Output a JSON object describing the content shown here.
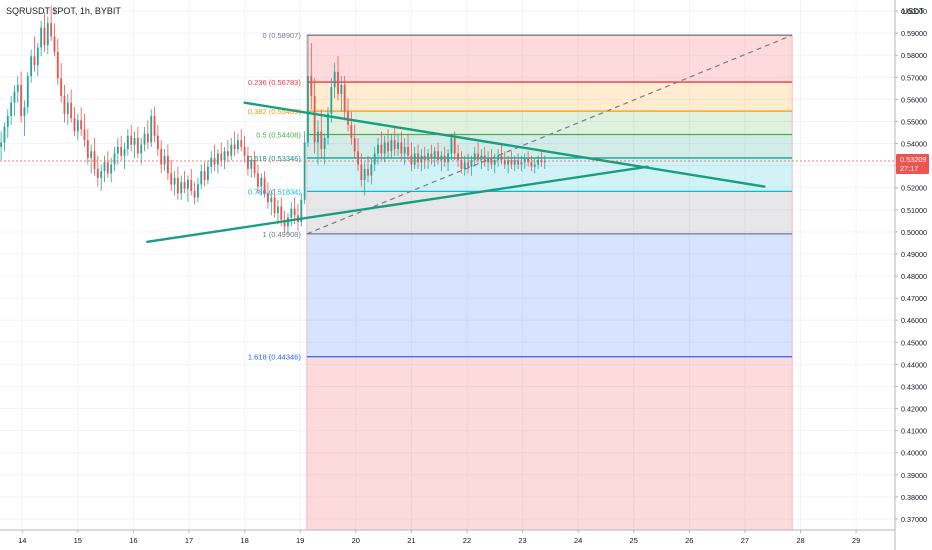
{
  "header": {
    "symbol_line": "SQRUSDT $POT, 1h, BYBIT",
    "currency": "USDT"
  },
  "price_tag": {
    "price": "0.53209",
    "countdown": "27:17"
  },
  "colors": {
    "accent_green": "#1a9e80",
    "candle_up": "#26a69a",
    "candle_down": "#ef5350",
    "price_tag_bg": "#ef5350"
  },
  "chart_data": {
    "type": "candlestick",
    "title": "SQRUSDT $POT, 1h, BYBIT",
    "y_axis": {
      "label": "USDT",
      "range": [
        0.365,
        0.605
      ],
      "ticks": [
        "0.60000",
        "0.59000",
        "0.58000",
        "0.57000",
        "0.56000",
        "0.55000",
        "0.54000",
        "0.53000",
        "0.52000",
        "0.51000",
        "0.50000",
        "0.49000",
        "0.48000",
        "0.47000",
        "0.46000",
        "0.45000",
        "0.44000",
        "0.43000",
        "0.42000",
        "0.41000",
        "0.40000",
        "0.39000",
        "0.38000",
        "0.37000"
      ]
    },
    "x_axis": {
      "range": [
        13.6,
        29.7
      ],
      "ticks": [
        {
          "day": 14,
          "label": "14"
        },
        {
          "day": 15,
          "label": "15"
        },
        {
          "day": 16,
          "label": "16"
        },
        {
          "day": 17,
          "label": "17"
        },
        {
          "day": 18,
          "label": "18"
        },
        {
          "day": 19,
          "label": "19"
        },
        {
          "day": 20,
          "label": "20"
        },
        {
          "day": 21,
          "label": "21"
        },
        {
          "day": 22,
          "label": "22"
        },
        {
          "day": 23,
          "label": "23"
        },
        {
          "day": 24,
          "label": "24"
        },
        {
          "day": 25,
          "label": "25"
        },
        {
          "day": 26,
          "label": "26"
        },
        {
          "day": 27,
          "label": "27"
        },
        {
          "day": 28,
          "label": "28"
        },
        {
          "day": 29,
          "label": "29"
        }
      ]
    },
    "last_price": 0.53209,
    "fib_retracement": {
      "x_start": 19.12,
      "x_end": 27.85,
      "levels": [
        {
          "level": "0",
          "price": 0.58907,
          "label": "0 (0.58907)",
          "color": "#787b86",
          "fill": null
        },
        {
          "level": "0.236",
          "price": 0.56783,
          "label": "0.236 (0.56783)",
          "color": "#f23645",
          "fill": "rgba(242,54,69,0.18)"
        },
        {
          "level": "0.382",
          "price": 0.55469,
          "label": "0.382 (0.55469)",
          "color": "#ff9800",
          "fill": "rgba(255,152,0,0.18)"
        },
        {
          "level": "0.5",
          "price": 0.54408,
          "label": "0.5 (0.54408)",
          "color": "#4caf50",
          "fill": "rgba(76,175,80,0.18)"
        },
        {
          "level": "0.618",
          "price": 0.53346,
          "label": "0.618 (0.53346)",
          "color": "#089981",
          "fill": "rgba(8,153,129,0.18)"
        },
        {
          "level": "0.786",
          "price": 0.51834,
          "label": "0.786 (0.51834)",
          "color": "#00bcd4",
          "fill": "rgba(0,188,212,0.18)"
        },
        {
          "level": "1",
          "price": 0.49908,
          "label": "1 (0.49908)",
          "color": "#787b86",
          "fill": "rgba(120,123,134,0.18)"
        },
        {
          "level": "1.618",
          "price": 0.44346,
          "label": "1.618 (0.44346)",
          "color": "#2962ff",
          "fill": "rgba(41,98,255,0.18)"
        }
      ],
      "bottom_fill_to": 0.365,
      "bottom_fill_color": "rgba(242,54,69,0.18)",
      "trend_line": {
        "x1": 19.12,
        "y1": 0.49908,
        "x2": 27.85,
        "y2": 0.58907
      }
    },
    "trendlines": [
      {
        "name": "upper",
        "x1": 18.0,
        "y1": 0.5585,
        "x2": 27.35,
        "y2": 0.5205,
        "color": "#1a9e80"
      },
      {
        "name": "lower",
        "x1": 16.25,
        "y1": 0.4955,
        "x2": 25.25,
        "y2": 0.5295,
        "color": "#1a9e80"
      }
    ],
    "candles": [
      [
        13.62,
        0.5385,
        0.5455,
        0.5325,
        0.5405
      ],
      [
        13.68,
        0.5405,
        0.5495,
        0.5365,
        0.5475
      ],
      [
        13.74,
        0.5475,
        0.5555,
        0.5425,
        0.5525
      ],
      [
        13.8,
        0.5525,
        0.5615,
        0.5485,
        0.5585
      ],
      [
        13.86,
        0.5585,
        0.5665,
        0.5525,
        0.5635
      ],
      [
        13.92,
        0.5635,
        0.5705,
        0.5585,
        0.5665
      ],
      [
        13.98,
        0.5665,
        0.5725,
        0.5495,
        0.5525
      ],
      [
        14.04,
        0.5525,
        0.5595,
        0.5435,
        0.5565
      ],
      [
        14.1,
        0.5565,
        0.5725,
        0.5535,
        0.5705
      ],
      [
        14.16,
        0.5705,
        0.5825,
        0.5675,
        0.5795
      ],
      [
        14.22,
        0.5795,
        0.5885,
        0.5725,
        0.5755
      ],
      [
        14.28,
        0.5755,
        0.5855,
        0.5705,
        0.5835
      ],
      [
        14.34,
        0.5835,
        0.5955,
        0.5795,
        0.5925
      ],
      [
        14.4,
        0.5925,
        0.5995,
        0.5815,
        0.5845
      ],
      [
        14.46,
        0.5845,
        0.5975,
        0.5805,
        0.5945
      ],
      [
        14.52,
        0.5945,
        0.6025,
        0.5865,
        0.5885
      ],
      [
        14.58,
        0.5885,
        0.5945,
        0.5795,
        0.5815
      ],
      [
        14.64,
        0.5815,
        0.5875,
        0.5665,
        0.5695
      ],
      [
        14.7,
        0.5695,
        0.5765,
        0.5585,
        0.5615
      ],
      [
        14.76,
        0.5615,
        0.5665,
        0.5495,
        0.5535
      ],
      [
        14.82,
        0.5535,
        0.5625,
        0.5485,
        0.5585
      ],
      [
        14.88,
        0.5585,
        0.5645,
        0.5495,
        0.5515
      ],
      [
        14.94,
        0.5515,
        0.5565,
        0.5435,
        0.5455
      ],
      [
        15.0,
        0.5455,
        0.5535,
        0.5415,
        0.5505
      ],
      [
        15.06,
        0.5505,
        0.5565,
        0.5435,
        0.5465
      ],
      [
        15.12,
        0.5465,
        0.5535,
        0.5385,
        0.5415
      ],
      [
        15.18,
        0.5415,
        0.5465,
        0.5305,
        0.5335
      ],
      [
        15.24,
        0.5335,
        0.5395,
        0.5265,
        0.5365
      ],
      [
        15.3,
        0.5365,
        0.5425,
        0.5255,
        0.5285
      ],
      [
        15.36,
        0.5285,
        0.5345,
        0.5205,
        0.5245
      ],
      [
        15.42,
        0.5245,
        0.5305,
        0.5185,
        0.5275
      ],
      [
        15.48,
        0.5275,
        0.5345,
        0.5225,
        0.5315
      ],
      [
        15.54,
        0.5315,
        0.5365,
        0.5245,
        0.5265
      ],
      [
        15.6,
        0.5265,
        0.5335,
        0.5225,
        0.5305
      ],
      [
        15.66,
        0.5305,
        0.5385,
        0.5275,
        0.5355
      ],
      [
        15.72,
        0.5355,
        0.5425,
        0.5305,
        0.5385
      ],
      [
        15.78,
        0.5385,
        0.5435,
        0.5325,
        0.5345
      ],
      [
        15.84,
        0.5345,
        0.5405,
        0.5285,
        0.5375
      ],
      [
        15.9,
        0.5375,
        0.5465,
        0.5345,
        0.5435
      ],
      [
        15.96,
        0.5435,
        0.5485,
        0.5365,
        0.5395
      ],
      [
        16.02,
        0.5395,
        0.5455,
        0.5335,
        0.5425
      ],
      [
        16.08,
        0.5425,
        0.5475,
        0.5335,
        0.5355
      ],
      [
        16.14,
        0.5355,
        0.5425,
        0.5305,
        0.5395
      ],
      [
        16.2,
        0.5395,
        0.5475,
        0.5365,
        0.5445
      ],
      [
        16.26,
        0.5445,
        0.5505,
        0.5375,
        0.5405
      ],
      [
        16.32,
        0.5405,
        0.5555,
        0.5385,
        0.5525
      ],
      [
        16.38,
        0.5525,
        0.5565,
        0.5405,
        0.5435
      ],
      [
        16.44,
        0.5435,
        0.5485,
        0.5345,
        0.5375
      ],
      [
        16.5,
        0.5375,
        0.5415,
        0.5265,
        0.5305
      ],
      [
        16.56,
        0.5305,
        0.5375,
        0.5275,
        0.5345
      ],
      [
        16.62,
        0.5345,
        0.5395,
        0.5235,
        0.5265
      ],
      [
        16.68,
        0.5265,
        0.5325,
        0.5185,
        0.5215
      ],
      [
        16.74,
        0.5215,
        0.5275,
        0.5165,
        0.5245
      ],
      [
        16.8,
        0.5245,
        0.5295,
        0.5145,
        0.5175
      ],
      [
        16.86,
        0.5175,
        0.5255,
        0.5145,
        0.5225
      ],
      [
        16.92,
        0.5225,
        0.5275,
        0.5175,
        0.5195
      ],
      [
        16.98,
        0.5195,
        0.5255,
        0.5135,
        0.5235
      ],
      [
        17.04,
        0.5235,
        0.5285,
        0.5165,
        0.5185
      ],
      [
        17.1,
        0.5185,
        0.5225,
        0.5125,
        0.5155
      ],
      [
        17.16,
        0.5155,
        0.5245,
        0.5135,
        0.5215
      ],
      [
        17.22,
        0.5215,
        0.5305,
        0.5195,
        0.5275
      ],
      [
        17.28,
        0.5275,
        0.5315,
        0.5205,
        0.5235
      ],
      [
        17.34,
        0.5235,
        0.5325,
        0.5215,
        0.5295
      ],
      [
        17.4,
        0.5295,
        0.5365,
        0.5265,
        0.5335
      ],
      [
        17.46,
        0.5335,
        0.5395,
        0.5275,
        0.5305
      ],
      [
        17.52,
        0.5305,
        0.5375,
        0.5265,
        0.5355
      ],
      [
        17.58,
        0.5355,
        0.5405,
        0.5295,
        0.5325
      ],
      [
        17.64,
        0.5325,
        0.5385,
        0.5285,
        0.5365
      ],
      [
        17.7,
        0.5365,
        0.5415,
        0.5315,
        0.5345
      ],
      [
        17.76,
        0.5345,
        0.5425,
        0.5325,
        0.5395
      ],
      [
        17.82,
        0.5395,
        0.5455,
        0.5345,
        0.5375
      ],
      [
        17.88,
        0.5375,
        0.5445,
        0.5355,
        0.5415
      ],
      [
        17.94,
        0.5415,
        0.5465,
        0.5365,
        0.5385
      ],
      [
        18.0,
        0.5385,
        0.5435,
        0.5315,
        0.5345
      ],
      [
        18.06,
        0.5345,
        0.5385,
        0.5255,
        0.5285
      ],
      [
        18.12,
        0.5285,
        0.5345,
        0.5245,
        0.5325
      ],
      [
        18.18,
        0.5325,
        0.5365,
        0.5245,
        0.5265
      ],
      [
        18.24,
        0.5265,
        0.5305,
        0.5175,
        0.5205
      ],
      [
        18.3,
        0.5205,
        0.5265,
        0.5165,
        0.5245
      ],
      [
        18.36,
        0.5245,
        0.5275,
        0.5155,
        0.5175
      ],
      [
        18.42,
        0.5175,
        0.5225,
        0.5105,
        0.5135
      ],
      [
        18.48,
        0.5135,
        0.5185,
        0.5075,
        0.5155
      ],
      [
        18.54,
        0.5155,
        0.5195,
        0.5065,
        0.5085
      ],
      [
        18.6,
        0.5085,
        0.5145,
        0.5035,
        0.5115
      ],
      [
        18.66,
        0.5115,
        0.5155,
        0.5025,
        0.5055
      ],
      [
        18.72,
        0.5055,
        0.5095,
        0.4995,
        0.5025
      ],
      [
        18.78,
        0.5025,
        0.5085,
        0.4991,
        0.5065
      ],
      [
        18.84,
        0.5065,
        0.5135,
        0.5025,
        0.5105
      ],
      [
        18.9,
        0.5105,
        0.5155,
        0.5035,
        0.5075
      ],
      [
        18.96,
        0.5075,
        0.5125,
        0.5005,
        0.5045
      ],
      [
        19.02,
        0.5045,
        0.5175,
        0.5025,
        0.5145
      ],
      [
        19.08,
        0.5145,
        0.5455,
        0.5125,
        0.5405
      ],
      [
        19.14,
        0.5405,
        0.5891,
        0.5385,
        0.5705
      ],
      [
        19.2,
        0.5705,
        0.5855,
        0.5555,
        0.5615
      ],
      [
        19.26,
        0.5615,
        0.5695,
        0.5355,
        0.5405
      ],
      [
        19.32,
        0.5405,
        0.5505,
        0.5305,
        0.5455
      ],
      [
        19.38,
        0.5455,
        0.5555,
        0.5335,
        0.5375
      ],
      [
        19.44,
        0.5375,
        0.5445,
        0.5305,
        0.5425
      ],
      [
        19.5,
        0.5425,
        0.5565,
        0.5395,
        0.5535
      ],
      [
        19.56,
        0.5535,
        0.5695,
        0.5495,
        0.5655
      ],
      [
        19.62,
        0.5655,
        0.5765,
        0.5605,
        0.5725
      ],
      [
        19.68,
        0.5725,
        0.5795,
        0.5595,
        0.5625
      ],
      [
        19.74,
        0.5625,
        0.5705,
        0.5545,
        0.5665
      ],
      [
        19.8,
        0.5665,
        0.5705,
        0.5505,
        0.5545
      ],
      [
        19.86,
        0.5545,
        0.5605,
        0.5455,
        0.5485
      ],
      [
        19.92,
        0.5485,
        0.5545,
        0.5395,
        0.5425
      ],
      [
        19.98,
        0.5425,
        0.5485,
        0.5335,
        0.5365
      ],
      [
        20.04,
        0.5365,
        0.5425,
        0.5275,
        0.5305
      ],
      [
        20.1,
        0.5305,
        0.5355,
        0.5205,
        0.5235
      ],
      [
        20.16,
        0.5235,
        0.5315,
        0.5165,
        0.5285
      ],
      [
        20.22,
        0.5285,
        0.5345,
        0.5225,
        0.5255
      ],
      [
        20.28,
        0.5255,
        0.5335,
        0.5215,
        0.5305
      ],
      [
        20.34,
        0.5305,
        0.5385,
        0.5275,
        0.5355
      ],
      [
        20.4,
        0.5355,
        0.5425,
        0.5305,
        0.5395
      ],
      [
        20.46,
        0.5395,
        0.5455,
        0.5325,
        0.5355
      ],
      [
        20.52,
        0.5355,
        0.5435,
        0.5315,
        0.5405
      ],
      [
        20.58,
        0.5405,
        0.5465,
        0.5335,
        0.5365
      ],
      [
        20.64,
        0.5365,
        0.5445,
        0.5335,
        0.5415
      ],
      [
        20.7,
        0.5415,
        0.5475,
        0.5345,
        0.5375
      ],
      [
        20.76,
        0.5375,
        0.5445,
        0.5345,
        0.5405
      ],
      [
        20.82,
        0.5405,
        0.5455,
        0.5325,
        0.5355
      ],
      [
        20.88,
        0.5355,
        0.5425,
        0.5305,
        0.5385
      ],
      [
        20.94,
        0.5385,
        0.5445,
        0.5325,
        0.5345
      ],
      [
        21.0,
        0.5345,
        0.5405,
        0.5275,
        0.5305
      ],
      [
        21.06,
        0.5305,
        0.5385,
        0.5285,
        0.5355
      ],
      [
        21.12,
        0.5355,
        0.5395,
        0.5285,
        0.5315
      ],
      [
        21.18,
        0.5315,
        0.5375,
        0.5275,
        0.5345
      ],
      [
        21.24,
        0.5345,
        0.5385,
        0.5285,
        0.5325
      ],
      [
        21.3,
        0.5325,
        0.5375,
        0.5285,
        0.5355
      ],
      [
        21.36,
        0.5355,
        0.5395,
        0.5305,
        0.5335
      ],
      [
        21.42,
        0.5335,
        0.5385,
        0.5295,
        0.5365
      ],
      [
        21.48,
        0.5365,
        0.5405,
        0.5305,
        0.5325
      ],
      [
        21.54,
        0.5325,
        0.5365,
        0.5275,
        0.5345
      ],
      [
        21.6,
        0.5345,
        0.5385,
        0.5295,
        0.5315
      ],
      [
        21.66,
        0.5315,
        0.5375,
        0.5275,
        0.5355
      ],
      [
        21.72,
        0.5355,
        0.5445,
        0.5325,
        0.5425
      ],
      [
        21.78,
        0.5425,
        0.5455,
        0.5325,
        0.5355
      ],
      [
        21.84,
        0.5355,
        0.5395,
        0.5295,
        0.5325
      ],
      [
        21.9,
        0.5325,
        0.5365,
        0.5265,
        0.5285
      ],
      [
        21.96,
        0.5285,
        0.5345,
        0.5255,
        0.5315
      ],
      [
        22.02,
        0.5315,
        0.5355,
        0.5265,
        0.5295
      ],
      [
        22.08,
        0.5295,
        0.5345,
        0.5255,
        0.5325
      ],
      [
        22.14,
        0.5325,
        0.5385,
        0.5295,
        0.5355
      ],
      [
        22.2,
        0.5355,
        0.5405,
        0.5305,
        0.5325
      ],
      [
        22.26,
        0.5325,
        0.5375,
        0.5285,
        0.5345
      ],
      [
        22.32,
        0.5345,
        0.5385,
        0.5295,
        0.5315
      ],
      [
        22.38,
        0.5315,
        0.5365,
        0.5275,
        0.5335
      ],
      [
        22.44,
        0.5335,
        0.5375,
        0.5285,
        0.5305
      ],
      [
        22.5,
        0.5305,
        0.5355,
        0.5265,
        0.5325
      ],
      [
        22.56,
        0.5325,
        0.5375,
        0.5295,
        0.5345
      ],
      [
        22.62,
        0.5345,
        0.5395,
        0.5305,
        0.5325
      ],
      [
        22.68,
        0.5325,
        0.5365,
        0.5285,
        0.5305
      ],
      [
        22.74,
        0.5305,
        0.5345,
        0.5265,
        0.5325
      ],
      [
        22.8,
        0.5325,
        0.5365,
        0.5285,
        0.5305
      ],
      [
        22.86,
        0.5305,
        0.5345,
        0.5275,
        0.5325
      ],
      [
        22.92,
        0.5325,
        0.5355,
        0.5285,
        0.5305
      ],
      [
        22.98,
        0.5305,
        0.5345,
        0.5275,
        0.5315
      ],
      [
        23.04,
        0.5315,
        0.5355,
        0.5285,
        0.5335
      ],
      [
        23.1,
        0.5335,
        0.5365,
        0.5295,
        0.5315
      ],
      [
        23.16,
        0.5315,
        0.5345,
        0.5275,
        0.5295
      ],
      [
        23.22,
        0.5295,
        0.5335,
        0.5265,
        0.5305
      ],
      [
        23.28,
        0.5305,
        0.5345,
        0.5285,
        0.5325
      ],
      [
        23.34,
        0.5325,
        0.5365,
        0.5295,
        0.5315
      ],
      [
        23.4,
        0.5315,
        0.5345,
        0.5285,
        0.5321
      ]
    ]
  }
}
